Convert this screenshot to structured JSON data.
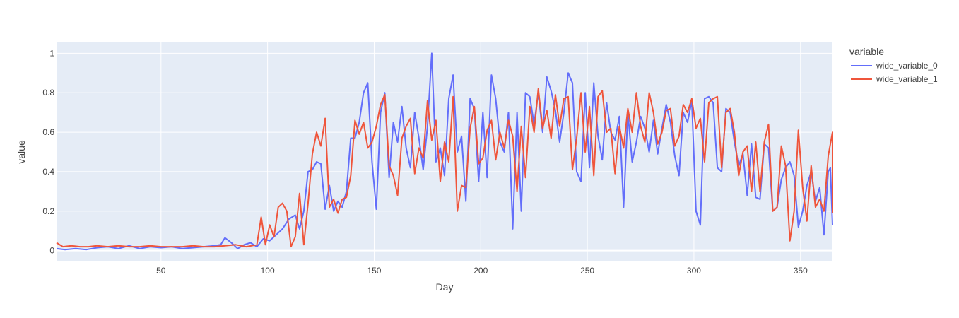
{
  "chart_data": {
    "type": "line",
    "xlabel": "Day",
    "ylabel": "value",
    "xlim": [
      1,
      365
    ],
    "ylim": [
      -0.055,
      1.055
    ],
    "xticks": [
      50,
      100,
      150,
      200,
      250,
      300,
      350
    ],
    "yticks": [
      0,
      0.2,
      0.4,
      0.6,
      0.8,
      1
    ],
    "ytick_labels": [
      "0",
      "0.2",
      "0.4",
      "0.6",
      "0.8",
      "1"
    ],
    "grid": true,
    "legend": {
      "title": "variable",
      "placement": "right"
    },
    "series": [
      {
        "name": "wide_variable_0",
        "color": "#636efa",
        "points": [
          [
            1,
            0.01
          ],
          [
            5,
            0.005
          ],
          [
            10,
            0.01
          ],
          [
            15,
            0.005
          ],
          [
            20,
            0.015
          ],
          [
            25,
            0.02
          ],
          [
            30,
            0.01
          ],
          [
            35,
            0.025
          ],
          [
            40,
            0.01
          ],
          [
            45,
            0.02
          ],
          [
            50,
            0.015
          ],
          [
            55,
            0.02
          ],
          [
            60,
            0.01
          ],
          [
            65,
            0.015
          ],
          [
            70,
            0.02
          ],
          [
            75,
            0.025
          ],
          [
            78,
            0.03
          ],
          [
            80,
            0.065
          ],
          [
            83,
            0.04
          ],
          [
            86,
            0.01
          ],
          [
            89,
            0.03
          ],
          [
            92,
            0.04
          ],
          [
            95,
            0.02
          ],
          [
            98,
            0.06
          ],
          [
            101,
            0.05
          ],
          [
            104,
            0.08
          ],
          [
            107,
            0.11
          ],
          [
            110,
            0.16
          ],
          [
            113,
            0.18
          ],
          [
            115,
            0.11
          ],
          [
            117,
            0.2
          ],
          [
            119,
            0.4
          ],
          [
            121,
            0.41
          ],
          [
            123,
            0.45
          ],
          [
            125,
            0.44
          ],
          [
            127,
            0.21
          ],
          [
            129,
            0.33
          ],
          [
            131,
            0.2
          ],
          [
            133,
            0.25
          ],
          [
            135,
            0.22
          ],
          [
            137,
            0.3
          ],
          [
            139,
            0.57
          ],
          [
            141,
            0.57
          ],
          [
            143,
            0.65
          ],
          [
            145,
            0.8
          ],
          [
            147,
            0.85
          ],
          [
            149,
            0.45
          ],
          [
            151,
            0.21
          ],
          [
            153,
            0.7
          ],
          [
            155,
            0.8
          ],
          [
            157,
            0.37
          ],
          [
            159,
            0.65
          ],
          [
            161,
            0.55
          ],
          [
            163,
            0.73
          ],
          [
            165,
            0.52
          ],
          [
            167,
            0.42
          ],
          [
            169,
            0.7
          ],
          [
            171,
            0.57
          ],
          [
            173,
            0.41
          ],
          [
            175,
            0.63
          ],
          [
            177,
            1.0
          ],
          [
            179,
            0.45
          ],
          [
            181,
            0.52
          ],
          [
            183,
            0.38
          ],
          [
            185,
            0.77
          ],
          [
            187,
            0.89
          ],
          [
            189,
            0.5
          ],
          [
            191,
            0.58
          ],
          [
            193,
            0.25
          ],
          [
            195,
            0.77
          ],
          [
            197,
            0.72
          ],
          [
            199,
            0.35
          ],
          [
            201,
            0.7
          ],
          [
            203,
            0.37
          ],
          [
            205,
            0.89
          ],
          [
            207,
            0.77
          ],
          [
            209,
            0.55
          ],
          [
            211,
            0.5
          ],
          [
            213,
            0.7
          ],
          [
            215,
            0.11
          ],
          [
            217,
            0.7
          ],
          [
            219,
            0.2
          ],
          [
            221,
            0.8
          ],
          [
            223,
            0.78
          ],
          [
            225,
            0.64
          ],
          [
            227,
            0.8
          ],
          [
            229,
            0.6
          ],
          [
            231,
            0.88
          ],
          [
            233,
            0.81
          ],
          [
            235,
            0.71
          ],
          [
            237,
            0.55
          ],
          [
            239,
            0.7
          ],
          [
            241,
            0.9
          ],
          [
            243,
            0.85
          ],
          [
            245,
            0.4
          ],
          [
            247,
            0.35
          ],
          [
            249,
            0.8
          ],
          [
            251,
            0.42
          ],
          [
            253,
            0.85
          ],
          [
            255,
            0.58
          ],
          [
            257,
            0.46
          ],
          [
            259,
            0.75
          ],
          [
            261,
            0.6
          ],
          [
            263,
            0.56
          ],
          [
            265,
            0.68
          ],
          [
            267,
            0.22
          ],
          [
            269,
            0.7
          ],
          [
            271,
            0.45
          ],
          [
            273,
            0.55
          ],
          [
            275,
            0.68
          ],
          [
            277,
            0.62
          ],
          [
            279,
            0.5
          ],
          [
            281,
            0.66
          ],
          [
            283,
            0.49
          ],
          [
            285,
            0.62
          ],
          [
            287,
            0.74
          ],
          [
            289,
            0.65
          ],
          [
            291,
            0.48
          ],
          [
            293,
            0.38
          ],
          [
            295,
            0.7
          ],
          [
            297,
            0.65
          ],
          [
            299,
            0.76
          ],
          [
            301,
            0.2
          ],
          [
            303,
            0.13
          ],
          [
            305,
            0.77
          ],
          [
            307,
            0.78
          ],
          [
            309,
            0.75
          ],
          [
            311,
            0.42
          ],
          [
            313,
            0.4
          ],
          [
            315,
            0.72
          ],
          [
            317,
            0.7
          ],
          [
            319,
            0.55
          ],
          [
            321,
            0.43
          ],
          [
            323,
            0.49
          ],
          [
            325,
            0.28
          ],
          [
            327,
            0.54
          ],
          [
            329,
            0.27
          ],
          [
            331,
            0.26
          ],
          [
            333,
            0.54
          ],
          [
            335,
            0.52
          ],
          [
            337,
            0.2
          ],
          [
            339,
            0.22
          ],
          [
            341,
            0.36
          ],
          [
            343,
            0.42
          ],
          [
            345,
            0.45
          ],
          [
            347,
            0.38
          ],
          [
            349,
            0.12
          ],
          [
            351,
            0.2
          ],
          [
            353,
            0.33
          ],
          [
            355,
            0.4
          ],
          [
            357,
            0.25
          ],
          [
            359,
            0.32
          ],
          [
            361,
            0.08
          ],
          [
            363,
            0.4
          ],
          [
            364,
            0.42
          ],
          [
            365,
            0.13
          ]
        ]
      },
      {
        "name": "wide_variable_1",
        "color": "#ef553b",
        "points": [
          [
            1,
            0.04
          ],
          [
            4,
            0.02
          ],
          [
            8,
            0.025
          ],
          [
            12,
            0.02
          ],
          [
            16,
            0.02
          ],
          [
            20,
            0.025
          ],
          [
            25,
            0.02
          ],
          [
            30,
            0.025
          ],
          [
            35,
            0.02
          ],
          [
            40,
            0.02
          ],
          [
            45,
            0.025
          ],
          [
            50,
            0.02
          ],
          [
            55,
            0.02
          ],
          [
            60,
            0.02
          ],
          [
            65,
            0.025
          ],
          [
            70,
            0.02
          ],
          [
            75,
            0.02
          ],
          [
            80,
            0.025
          ],
          [
            85,
            0.03
          ],
          [
            90,
            0.02
          ],
          [
            95,
            0.03
          ],
          [
            97,
            0.17
          ],
          [
            99,
            0.03
          ],
          [
            101,
            0.13
          ],
          [
            103,
            0.07
          ],
          [
            105,
            0.22
          ],
          [
            107,
            0.24
          ],
          [
            109,
            0.2
          ],
          [
            111,
            0.02
          ],
          [
            113,
            0.07
          ],
          [
            115,
            0.29
          ],
          [
            117,
            0.03
          ],
          [
            119,
            0.24
          ],
          [
            121,
            0.49
          ],
          [
            123,
            0.6
          ],
          [
            125,
            0.53
          ],
          [
            127,
            0.67
          ],
          [
            129,
            0.22
          ],
          [
            131,
            0.26
          ],
          [
            133,
            0.19
          ],
          [
            135,
            0.26
          ],
          [
            137,
            0.27
          ],
          [
            139,
            0.38
          ],
          [
            141,
            0.66
          ],
          [
            143,
            0.59
          ],
          [
            145,
            0.65
          ],
          [
            147,
            0.52
          ],
          [
            149,
            0.55
          ],
          [
            151,
            0.63
          ],
          [
            153,
            0.74
          ],
          [
            155,
            0.79
          ],
          [
            157,
            0.43
          ],
          [
            159,
            0.38
          ],
          [
            161,
            0.28
          ],
          [
            163,
            0.57
          ],
          [
            165,
            0.63
          ],
          [
            167,
            0.67
          ],
          [
            169,
            0.39
          ],
          [
            171,
            0.52
          ],
          [
            173,
            0.47
          ],
          [
            175,
            0.76
          ],
          [
            177,
            0.56
          ],
          [
            179,
            0.66
          ],
          [
            181,
            0.35
          ],
          [
            183,
            0.55
          ],
          [
            185,
            0.45
          ],
          [
            187,
            0.78
          ],
          [
            189,
            0.2
          ],
          [
            191,
            0.33
          ],
          [
            193,
            0.32
          ],
          [
            195,
            0.62
          ],
          [
            197,
            0.73
          ],
          [
            199,
            0.44
          ],
          [
            201,
            0.47
          ],
          [
            203,
            0.61
          ],
          [
            205,
            0.66
          ],
          [
            207,
            0.46
          ],
          [
            209,
            0.6
          ],
          [
            211,
            0.52
          ],
          [
            213,
            0.66
          ],
          [
            215,
            0.58
          ],
          [
            217,
            0.3
          ],
          [
            219,
            0.63
          ],
          [
            221,
            0.37
          ],
          [
            223,
            0.73
          ],
          [
            225,
            0.6
          ],
          [
            227,
            0.82
          ],
          [
            229,
            0.62
          ],
          [
            231,
            0.71
          ],
          [
            233,
            0.57
          ],
          [
            235,
            0.79
          ],
          [
            237,
            0.63
          ],
          [
            239,
            0.77
          ],
          [
            241,
            0.78
          ],
          [
            243,
            0.41
          ],
          [
            245,
            0.57
          ],
          [
            247,
            0.8
          ],
          [
            249,
            0.5
          ],
          [
            251,
            0.73
          ],
          [
            253,
            0.38
          ],
          [
            255,
            0.78
          ],
          [
            257,
            0.81
          ],
          [
            259,
            0.6
          ],
          [
            261,
            0.62
          ],
          [
            263,
            0.39
          ],
          [
            265,
            0.63
          ],
          [
            267,
            0.52
          ],
          [
            269,
            0.72
          ],
          [
            271,
            0.6
          ],
          [
            273,
            0.8
          ],
          [
            275,
            0.63
          ],
          [
            277,
            0.55
          ],
          [
            279,
            0.8
          ],
          [
            281,
            0.7
          ],
          [
            283,
            0.54
          ],
          [
            285,
            0.6
          ],
          [
            287,
            0.71
          ],
          [
            289,
            0.72
          ],
          [
            291,
            0.53
          ],
          [
            293,
            0.58
          ],
          [
            295,
            0.74
          ],
          [
            297,
            0.7
          ],
          [
            299,
            0.77
          ],
          [
            301,
            0.62
          ],
          [
            303,
            0.67
          ],
          [
            305,
            0.45
          ],
          [
            307,
            0.75
          ],
          [
            309,
            0.77
          ],
          [
            311,
            0.78
          ],
          [
            313,
            0.42
          ],
          [
            315,
            0.7
          ],
          [
            317,
            0.72
          ],
          [
            319,
            0.6
          ],
          [
            321,
            0.38
          ],
          [
            323,
            0.5
          ],
          [
            325,
            0.53
          ],
          [
            327,
            0.3
          ],
          [
            329,
            0.55
          ],
          [
            331,
            0.3
          ],
          [
            333,
            0.55
          ],
          [
            335,
            0.64
          ],
          [
            337,
            0.2
          ],
          [
            339,
            0.22
          ],
          [
            341,
            0.53
          ],
          [
            343,
            0.43
          ],
          [
            345,
            0.05
          ],
          [
            347,
            0.2
          ],
          [
            349,
            0.61
          ],
          [
            351,
            0.32
          ],
          [
            353,
            0.15
          ],
          [
            355,
            0.43
          ],
          [
            357,
            0.22
          ],
          [
            359,
            0.26
          ],
          [
            361,
            0.2
          ],
          [
            363,
            0.48
          ],
          [
            365,
            0.6
          ],
          [
            365,
            0.19
          ]
        ]
      }
    ]
  }
}
